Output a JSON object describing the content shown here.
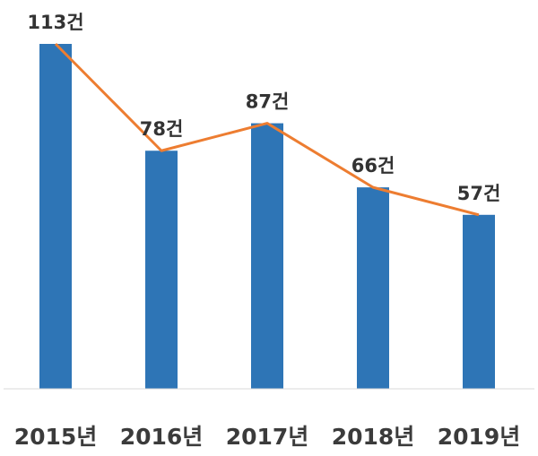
{
  "chart_data": {
    "type": "bar",
    "title": "",
    "xlabel": "",
    "ylabel": "",
    "categories": [
      "2015년",
      "2016년",
      "2017년",
      "2018년",
      "2019년"
    ],
    "values": [
      113,
      78,
      87,
      66,
      57
    ],
    "data_labels": [
      "113건",
      "78건",
      "87건",
      "66건",
      "57건"
    ],
    "ylim": [
      0,
      113
    ],
    "overlay_line": true,
    "grid": false,
    "legend": "none",
    "colors": {
      "bar": "#2e75b6",
      "line": "#ed7d31",
      "axis": "#d9d9d9"
    }
  }
}
